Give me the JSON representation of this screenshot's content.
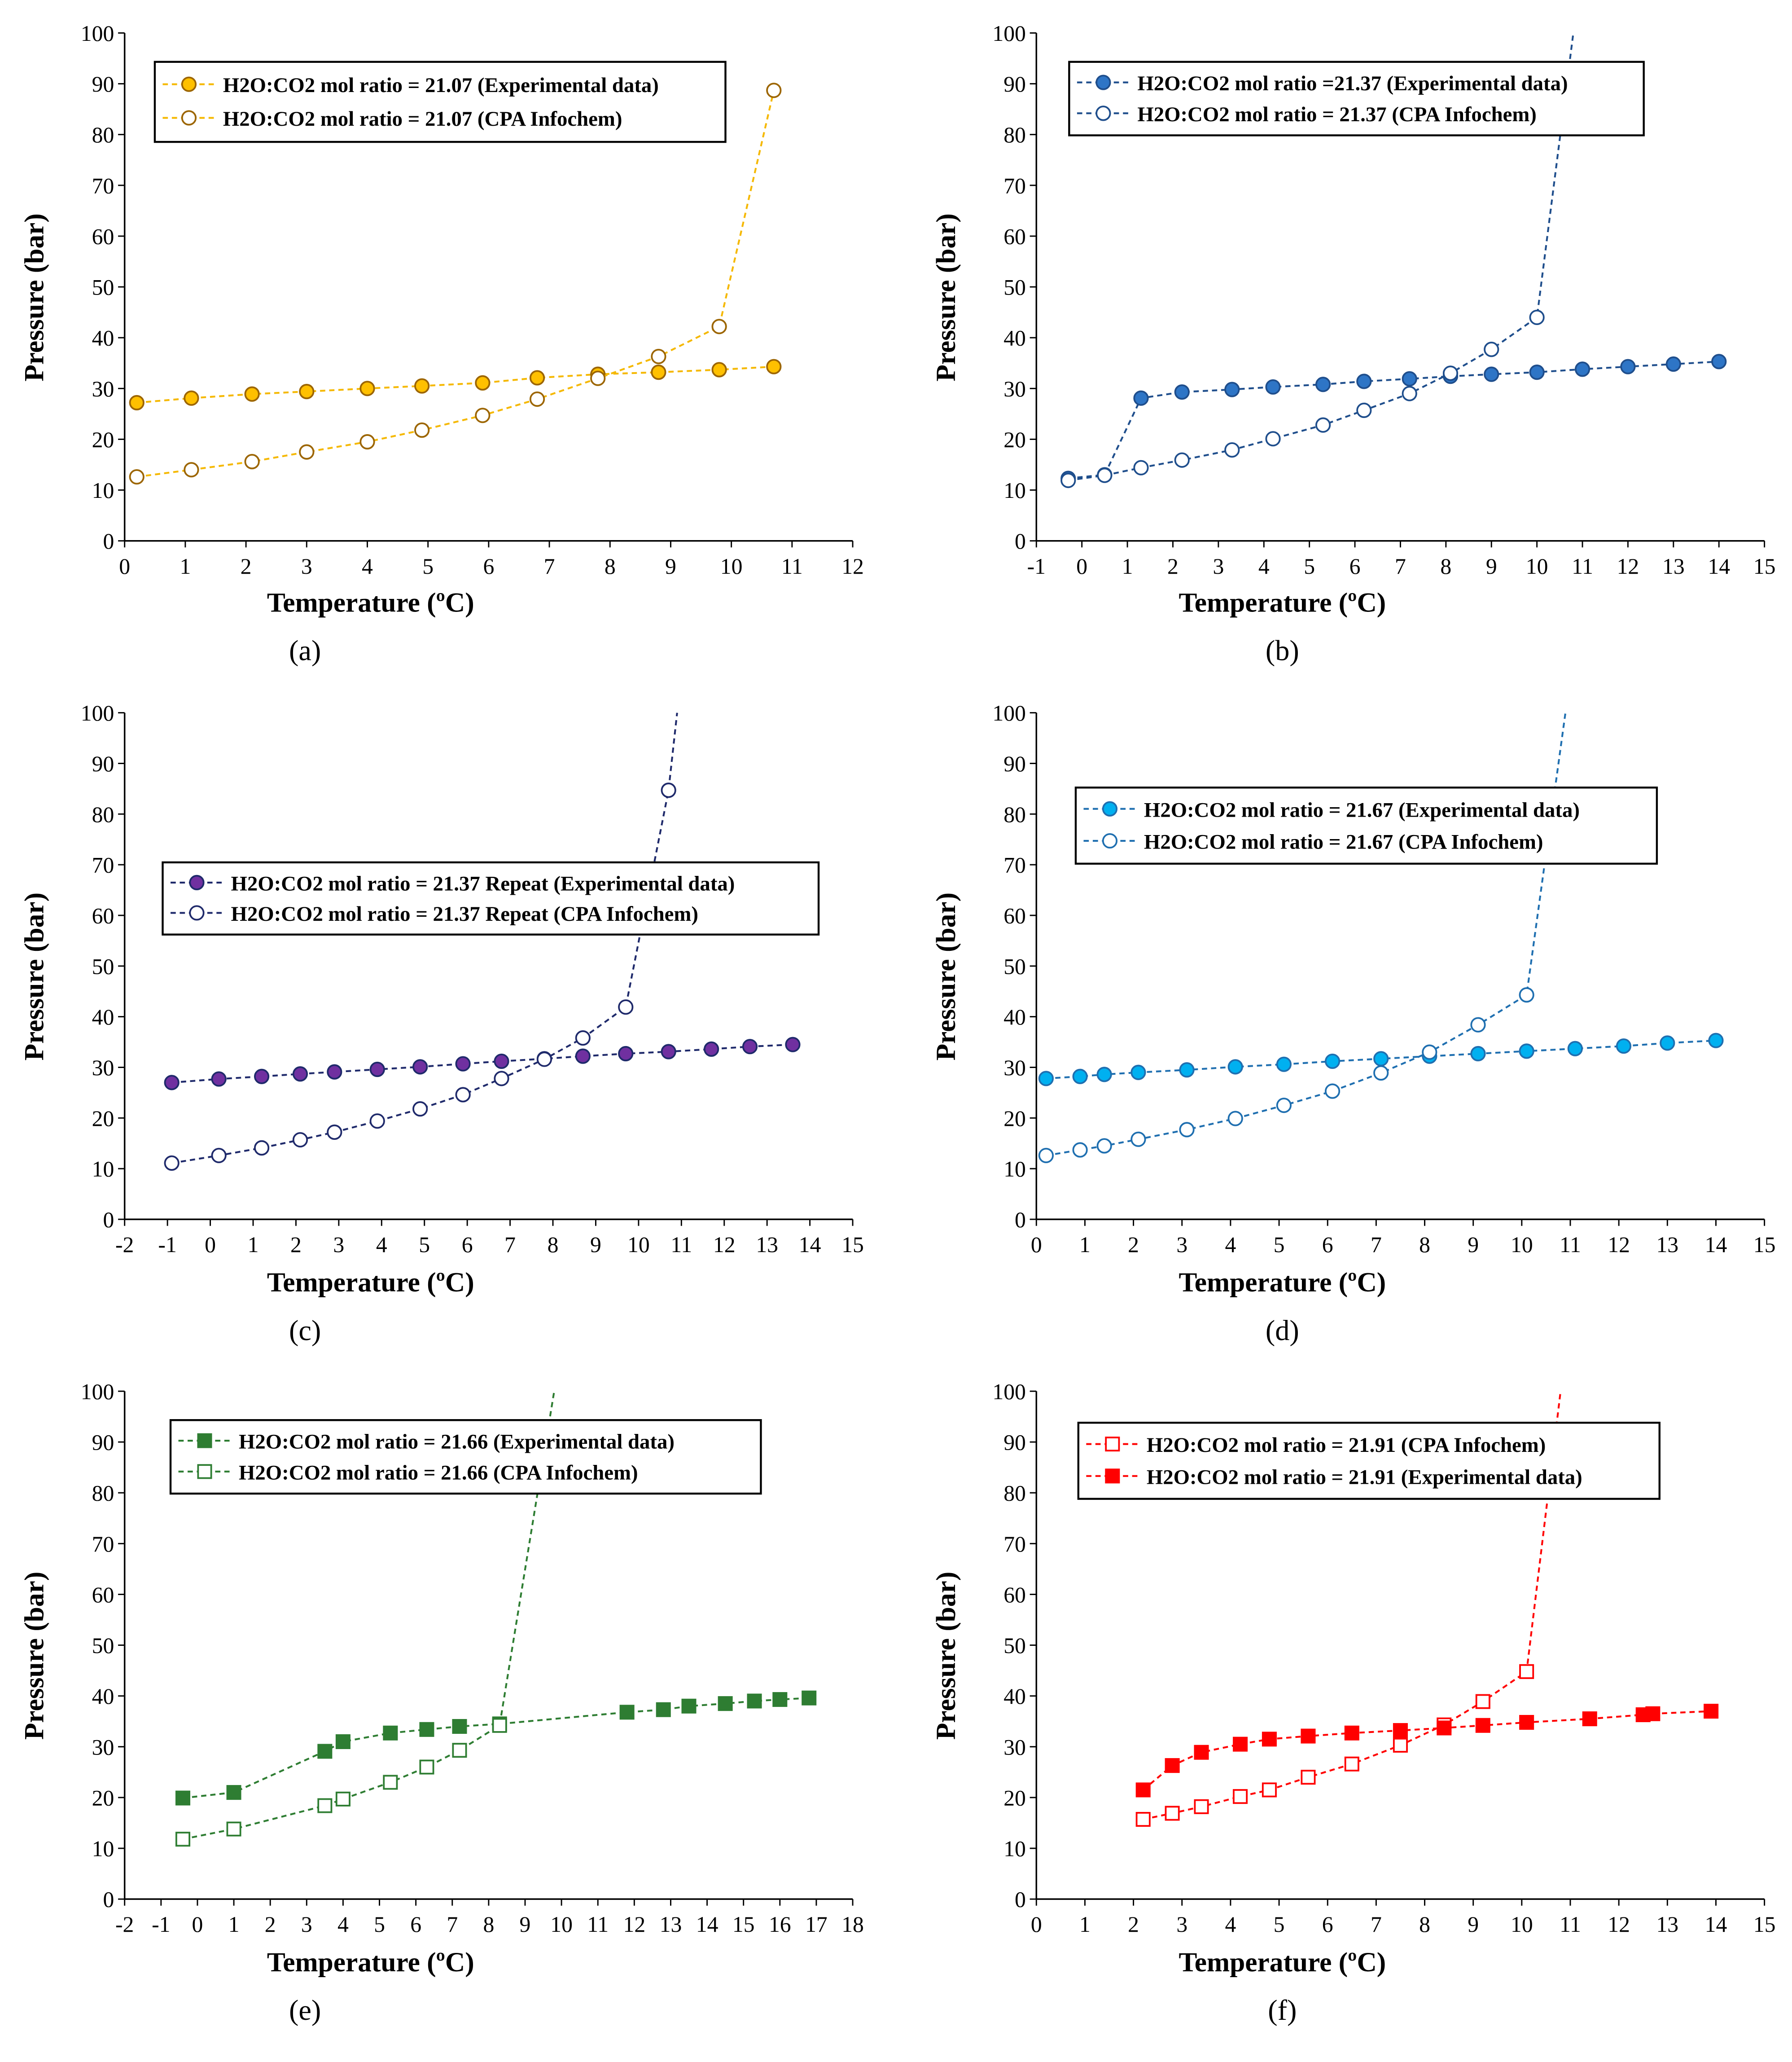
{
  "chart_data": [
    {
      "type": "line",
      "panel_label": "(a)",
      "xlabel": "Temperature (ºC)",
      "ylabel": "Pressure (bar)",
      "xlim": [
        0,
        12
      ],
      "ylim": [
        0,
        100
      ],
      "xticks": [
        0,
        1,
        2,
        3,
        4,
        5,
        6,
        7,
        8,
        9,
        10,
        11,
        12
      ],
      "yticks": [
        0,
        10,
        20,
        30,
        40,
        50,
        60,
        70,
        80,
        90,
        100
      ],
      "color": "#FFC000",
      "stroke": "#9C6500",
      "marker": "circle",
      "series": [
        {
          "name": "H2O:CO2 mol ratio = 21.07 (Experimental data)",
          "filled": true,
          "x": [
            0.2,
            1.1,
            2.1,
            3,
            4,
            4.9,
            5.9,
            6.8,
            7.8,
            8.8,
            9.8,
            10.7
          ],
          "y": [
            27.2,
            28.1,
            28.9,
            29.4,
            30,
            30.5,
            31.1,
            32.1,
            32.8,
            33.2,
            33.7,
            34.3
          ]
        },
        {
          "name": "H2O:CO2 mol ratio = 21.07 (CPA Infochem)",
          "filled": false,
          "x": [
            0.2,
            1.1,
            2.1,
            3,
            4,
            4.9,
            5.9,
            6.8,
            7.8,
            8.8,
            9.8,
            10.7
          ],
          "y": [
            12.6,
            14,
            15.6,
            17.5,
            19.5,
            21.8,
            24.7,
            27.9,
            32,
            36.3,
            42.2,
            88.7
          ]
        }
      ]
    },
    {
      "type": "line",
      "panel_label": "(b)",
      "xlabel": "Temperature (ºC)",
      "ylabel": "Pressure (bar)",
      "xlim": [
        -1,
        15
      ],
      "ylim": [
        0,
        100
      ],
      "xticks": [
        -1,
        0,
        1,
        2,
        3,
        4,
        5,
        6,
        7,
        8,
        9,
        10,
        11,
        12,
        13,
        14,
        15
      ],
      "yticks": [
        0,
        10,
        20,
        30,
        40,
        50,
        60,
        70,
        80,
        90,
        100
      ],
      "color": "#2E75C6",
      "stroke": "#1F4E8C",
      "marker": "circle",
      "series": [
        {
          "name": "H2O:CO2 mol ratio =21.37 (Experimental data)",
          "filled": true,
          "x": [
            -0.3,
            0.5,
            1.3,
            2.2,
            3.3,
            4.2,
            5.3,
            6.2,
            7.2,
            8.1,
            9,
            10,
            11,
            12,
            13,
            14
          ],
          "y": [
            12.3,
            13,
            28.1,
            29.3,
            29.8,
            30.3,
            30.8,
            31.4,
            31.9,
            32.4,
            32.8,
            33.2,
            33.8,
            34.3,
            34.8,
            35.3
          ]
        },
        {
          "name": "H2O:CO2 mol ratio = 21.37 (CPA Infochem)",
          "filled": false,
          "x": [
            -0.3,
            0.5,
            1.3,
            2.2,
            3.3,
            4.2,
            5.3,
            6.2,
            7.2,
            8.1,
            9,
            10
          ],
          "y": [
            11.9,
            12.9,
            14.4,
            15.9,
            17.9,
            20.1,
            22.8,
            25.7,
            29,
            33,
            37.7,
            44
          ],
          "tail": [
            10.8,
            100
          ]
        }
      ]
    },
    {
      "type": "line",
      "panel_label": "(c)",
      "xlabel": "Temperature (ºC)",
      "ylabel": "Pressure (bar)",
      "xlim": [
        -2,
        15
      ],
      "ylim": [
        0,
        100
      ],
      "xticks": [
        -2,
        -1,
        0,
        1,
        2,
        3,
        4,
        5,
        6,
        7,
        8,
        9,
        10,
        11,
        12,
        13,
        14,
        15
      ],
      "yticks": [
        0,
        10,
        20,
        30,
        40,
        50,
        60,
        70,
        80,
        90,
        100
      ],
      "color": "#7030A0",
      "stroke": "#1F2A6B",
      "marker": "circle",
      "series": [
        {
          "name": "H2O:CO2 mol ratio = 21.37 Repeat (Experimental data)",
          "filled": true,
          "x": [
            -0.9,
            0.2,
            1.2,
            2.1,
            2.9,
            3.9,
            4.9,
            5.9,
            6.8,
            7.8,
            8.7,
            9.7,
            10.7,
            11.7,
            12.6,
            13.6
          ],
          "y": [
            27,
            27.7,
            28.2,
            28.7,
            29.1,
            29.6,
            30.1,
            30.7,
            31.2,
            31.7,
            32.2,
            32.7,
            33.1,
            33.6,
            34.1,
            34.5
          ]
        },
        {
          "name": "H2O:CO2 mol ratio = 21.37 Repeat (CPA Infochem)",
          "filled": false,
          "x": [
            -0.9,
            0.2,
            1.2,
            2.1,
            2.9,
            3.9,
            4.9,
            5.9,
            6.8,
            7.8,
            8.7,
            9.7,
            10.7
          ],
          "y": [
            11.1,
            12.6,
            14.1,
            15.7,
            17.2,
            19.4,
            21.8,
            24.6,
            27.8,
            31.6,
            35.8,
            41.9,
            84.7
          ],
          "tail": [
            10.9,
            100
          ]
        }
      ]
    },
    {
      "type": "line",
      "panel_label": "(d)",
      "xlabel": "Temperature (ºC)",
      "ylabel": "Pressure (bar)",
      "xlim": [
        0,
        15
      ],
      "ylim": [
        0,
        100
      ],
      "xticks": [
        0,
        1,
        2,
        3,
        4,
        5,
        6,
        7,
        8,
        9,
        10,
        11,
        12,
        13,
        14,
        15
      ],
      "yticks": [
        0,
        10,
        20,
        30,
        40,
        50,
        60,
        70,
        80,
        90,
        100
      ],
      "color": "#00B0F0",
      "stroke": "#1F6FB0",
      "marker": "circle",
      "series": [
        {
          "name": "H2O:CO2 mol ratio = 21.67 (Experimental data)",
          "filled": true,
          "x": [
            0.2,
            0.9,
            1.4,
            2.1,
            3.1,
            4.1,
            5.1,
            6.1,
            7.1,
            8.1,
            9.1,
            10.1,
            11.1,
            12.1,
            13,
            14
          ],
          "y": [
            27.8,
            28.2,
            28.6,
            29,
            29.5,
            30.1,
            30.6,
            31.2,
            31.7,
            32.2,
            32.7,
            33.2,
            33.7,
            34.2,
            34.8,
            35.3
          ]
        },
        {
          "name": "H2O:CO2 mol ratio = 21.67 (CPA Infochem)",
          "filled": false,
          "x": [
            0.2,
            0.9,
            1.4,
            2.1,
            3.1,
            4.1,
            5.1,
            6.1,
            7.1,
            8.1,
            9.1,
            10.1
          ],
          "y": [
            12.6,
            13.7,
            14.5,
            15.8,
            17.7,
            19.9,
            22.5,
            25.3,
            28.9,
            33,
            38.4,
            44.3
          ],
          "tail": [
            10.9,
            100
          ]
        }
      ]
    },
    {
      "type": "line",
      "panel_label": "(e)",
      "xlabel": "Temperature (ºC)",
      "ylabel": "Pressure (bar)",
      "xlim": [
        -2,
        18
      ],
      "ylim": [
        0,
        100
      ],
      "xticks": [
        -2,
        -1,
        0,
        1,
        2,
        3,
        4,
        5,
        6,
        7,
        8,
        9,
        10,
        11,
        12,
        13,
        14,
        15,
        16,
        17,
        18
      ],
      "yticks": [
        0,
        10,
        20,
        30,
        40,
        50,
        60,
        70,
        80,
        90,
        100
      ],
      "color": "#2E7D32",
      "stroke": "#2E7D32",
      "marker": "square",
      "series": [
        {
          "name": "H2O:CO2 mol ratio = 21.66 (Experimental data)",
          "filled": true,
          "x": [
            -0.4,
            1,
            3.5,
            4,
            5.3,
            6.3,
            7.2,
            8.3,
            11.8,
            12.8,
            13.5,
            14.5,
            15.3,
            16,
            16.8
          ],
          "y": [
            19.9,
            21,
            29.1,
            31,
            32.7,
            33.4,
            34,
            34.5,
            36.8,
            37.3,
            38,
            38.5,
            39,
            39.3,
            39.6
          ]
        },
        {
          "name": "H2O:CO2 mol ratio = 21.66 (CPA Infochem)",
          "filled": false,
          "x": [
            -0.4,
            1,
            3.5,
            4,
            5.3,
            6.3,
            7.2,
            8.3
          ],
          "y": [
            11.8,
            13.8,
            18.4,
            19.7,
            23,
            26,
            29.3,
            34.2
          ],
          "tail": [
            9.8,
            100
          ]
        }
      ]
    },
    {
      "type": "line",
      "panel_label": "(f)",
      "xlabel": "Temperature (ºC)",
      "ylabel": "Pressure (bar)",
      "xlim": [
        0,
        15
      ],
      "ylim": [
        0,
        100
      ],
      "xticks": [
        0,
        1,
        2,
        3,
        4,
        5,
        6,
        7,
        8,
        9,
        10,
        11,
        12,
        13,
        14,
        15
      ],
      "yticks": [
        0,
        10,
        20,
        30,
        40,
        50,
        60,
        70,
        80,
        90,
        100
      ],
      "color": "#FF0000",
      "stroke": "#FF0000",
      "marker": "square",
      "series": [
        {
          "name": "H2O:CO2 mol ratio = 21.91 (CPA Infochem)",
          "filled": false,
          "x": [
            2.2,
            2.8,
            3.4,
            4.2,
            4.8,
            5.6,
            6.5,
            7.5,
            8.4,
            9.2,
            10.1
          ],
          "y": [
            15.7,
            16.9,
            18.2,
            20.2,
            21.5,
            24,
            26.6,
            30.3,
            34.3,
            38.9,
            44.8
          ],
          "tail": [
            10.8,
            100
          ]
        },
        {
          "name": "H2O:CO2 mol ratio = 21.91 (Experimental data)",
          "filled": true,
          "x": [
            2.2,
            2.8,
            3.4,
            4.2,
            4.8,
            5.6,
            6.5,
            7.5,
            8.4,
            9.2,
            10.1,
            11.4,
            12.5,
            12.7,
            13.9
          ],
          "y": [
            21.5,
            26.3,
            28.9,
            30.5,
            31.5,
            32.1,
            32.7,
            33.2,
            33.7,
            34.2,
            34.8,
            35.5,
            36.3,
            36.5,
            37
          ]
        }
      ]
    }
  ]
}
